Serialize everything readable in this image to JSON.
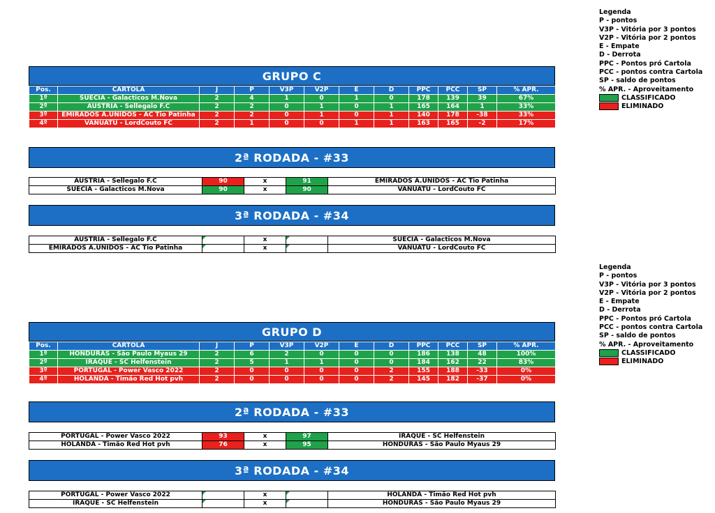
{
  "legend": {
    "title": "Legenda",
    "items": [
      "P - pontos",
      "V3P - Vitória por 3 pontos",
      "V2P - Vitória por 2 pontos",
      "E - Empate",
      "D - Derrota",
      "PPC - Pontos pró Cartola",
      "PCC - pontos contra Cartola",
      "SP - saldo de pontos",
      "% APR. - Aproveitamento"
    ],
    "classified": "CLASSIFICADO",
    "eliminated": "ELIMINADO",
    "colors": {
      "classified": "#1fa24a",
      "eliminated": "#e8211d"
    }
  },
  "columns": [
    "Pos.",
    "CARTOLA",
    "J",
    "P",
    "V3P",
    "V2P",
    "E",
    "D",
    "PPC",
    "PCC",
    "SP",
    "% APR."
  ],
  "groups": [
    {
      "title": "GRUPO C",
      "rows": [
        {
          "pos": "1º",
          "team": "SUÉCIA - Galacticos M.Nova",
          "j": "2",
          "p": "4",
          "v3p": "1",
          "v2p": "0",
          "e": "1",
          "d": "0",
          "ppc": "178",
          "pcc": "139",
          "sp": "39",
          "apr": "67%",
          "status": "green"
        },
        {
          "pos": "2º",
          "team": "AUSTRIA - Sellegalo F.C",
          "j": "2",
          "p": "2",
          "v3p": "0",
          "v2p": "1",
          "e": "0",
          "d": "1",
          "ppc": "165",
          "pcc": "164",
          "sp": "1",
          "apr": "33%",
          "status": "green"
        },
        {
          "pos": "3º",
          "team": "EMIRADOS A.UNIDOS - AC Tio Patinha",
          "j": "2",
          "p": "2",
          "v3p": "0",
          "v2p": "1",
          "e": "0",
          "d": "1",
          "ppc": "140",
          "pcc": "178",
          "sp": "-38",
          "apr": "33%",
          "status": "red"
        },
        {
          "pos": "4º",
          "team": "VANUATU - LordCouto FC",
          "j": "2",
          "p": "1",
          "v3p": "0",
          "v2p": "0",
          "e": "1",
          "d": "1",
          "ppc": "163",
          "pcc": "165",
          "sp": "-2",
          "apr": "17%",
          "status": "red"
        }
      ],
      "round2": {
        "title": "2ª RODADA - #33",
        "matches": [
          {
            "home": "AUSTRIA - Sellegalo F.C",
            "hs": "90",
            "hcolor": "red",
            "x": "x",
            "as": "91",
            "acolor": "green",
            "away": "EMIRADOS A.UNIDOS - AC Tio Patinha"
          },
          {
            "home": "SUÉCIA - Galacticos M.Nova",
            "hs": "90",
            "hcolor": "green",
            "x": "x",
            "as": "90",
            "acolor": "green",
            "away": "VANUATU - LordCouto FC"
          }
        ]
      },
      "round3": {
        "title": "3ª RODADA - #34",
        "matches": [
          {
            "home": "AUSTRIA - Sellegalo F.C",
            "hs": "",
            "hcolor": "empty",
            "x": "x",
            "as": "",
            "acolor": "empty",
            "away": "SUÉCIA - Galacticos M.Nova"
          },
          {
            "home": "EMIRADOS A.UNIDOS - AC Tio Patinha",
            "hs": "",
            "hcolor": "empty",
            "x": "x",
            "as": "",
            "acolor": "empty",
            "away": "VANUATU - LordCouto FC"
          }
        ]
      }
    },
    {
      "title": "GRUPO D",
      "rows": [
        {
          "pos": "1º",
          "team": "HONDURAS - São Paulo Myaus 29",
          "j": "2",
          "p": "6",
          "v3p": "2",
          "v2p": "0",
          "e": "0",
          "d": "0",
          "ppc": "186",
          "pcc": "138",
          "sp": "48",
          "apr": "100%",
          "status": "green"
        },
        {
          "pos": "2º",
          "team": "IRAQUE - SC Helfenstein",
          "j": "2",
          "p": "5",
          "v3p": "1",
          "v2p": "1",
          "e": "0",
          "d": "0",
          "ppc": "184",
          "pcc": "162",
          "sp": "22",
          "apr": "83%",
          "status": "green"
        },
        {
          "pos": "3º",
          "team": "PORTUGAL - Power Vasco 2022",
          "j": "2",
          "p": "0",
          "v3p": "0",
          "v2p": "0",
          "e": "0",
          "d": "2",
          "ppc": "155",
          "pcc": "188",
          "sp": "-33",
          "apr": "0%",
          "status": "red"
        },
        {
          "pos": "4º",
          "team": "HOLANDA - Timão Red Hot pvh",
          "j": "2",
          "p": "0",
          "v3p": "0",
          "v2p": "0",
          "e": "0",
          "d": "2",
          "ppc": "145",
          "pcc": "182",
          "sp": "-37",
          "apr": "0%",
          "status": "red"
        }
      ],
      "round2": {
        "title": "2ª RODADA - #33",
        "matches": [
          {
            "home": "PORTUGAL - Power Vasco 2022",
            "hs": "93",
            "hcolor": "red",
            "x": "x",
            "as": "97",
            "acolor": "green",
            "away": "IRAQUE - SC Helfenstein"
          },
          {
            "home": "HOLANDA - Timão Red Hot pvh",
            "hs": "76",
            "hcolor": "red",
            "x": "x",
            "as": "95",
            "acolor": "green",
            "away": "HONDURAS - São Paulo Myaus 29"
          }
        ]
      },
      "round3": {
        "title": "3ª RODADA - #34",
        "matches": [
          {
            "home": "PORTUGAL - Power Vasco 2022",
            "hs": "",
            "hcolor": "empty",
            "x": "x",
            "as": "",
            "acolor": "empty",
            "away": "HOLANDA - Timão Red Hot pvh"
          },
          {
            "home": "IRAQUE - SC Helfenstein",
            "hs": "",
            "hcolor": "empty",
            "x": "x",
            "as": "",
            "acolor": "empty",
            "away": "HONDURAS - São Paulo Myaus 29"
          }
        ]
      }
    }
  ]
}
